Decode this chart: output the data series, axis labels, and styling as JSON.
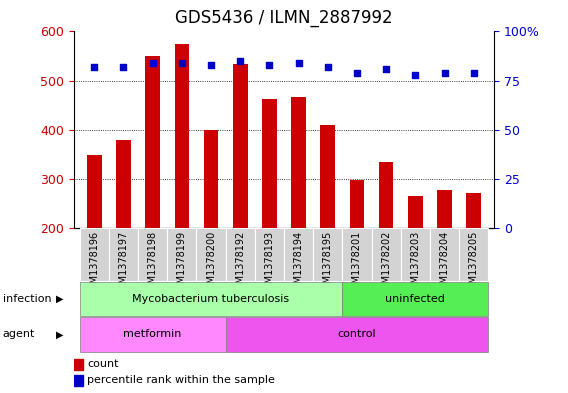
{
  "title": "GDS5436 / ILMN_2887992",
  "samples": [
    "GSM1378196",
    "GSM1378197",
    "GSM1378198",
    "GSM1378199",
    "GSM1378200",
    "GSM1378192",
    "GSM1378193",
    "GSM1378194",
    "GSM1378195",
    "GSM1378201",
    "GSM1378202",
    "GSM1378203",
    "GSM1378204",
    "GSM1378205"
  ],
  "counts": [
    348,
    378,
    550,
    575,
    400,
    533,
    463,
    467,
    410,
    298,
    335,
    265,
    277,
    272
  ],
  "percentiles": [
    82,
    82,
    84,
    84,
    83,
    85,
    83,
    84,
    82,
    79,
    81,
    78,
    79,
    79
  ],
  "ylim_left": [
    200,
    600
  ],
  "ylim_right": [
    0,
    100
  ],
  "yticks_left": [
    200,
    300,
    400,
    500,
    600
  ],
  "yticks_right": [
    0,
    25,
    50,
    75,
    100
  ],
  "bar_color": "#CC0000",
  "dot_color": "#0000CC",
  "bar_width": 0.5,
  "infection_groups": [
    {
      "label": "Mycobacterium tuberculosis",
      "start": 0,
      "end": 9,
      "color": "#AAFFAA"
    },
    {
      "label": "uninfected",
      "start": 9,
      "end": 14,
      "color": "#55EE55"
    }
  ],
  "agent_groups": [
    {
      "label": "metformin",
      "start": 0,
      "end": 5,
      "color": "#FF88FF"
    },
    {
      "label": "control",
      "start": 5,
      "end": 14,
      "color": "#EE55EE"
    }
  ],
  "infection_label": "infection",
  "agent_label": "agent",
  "legend_count_label": "count",
  "legend_pct_label": "percentile rank within the sample",
  "tick_label_color_left": "#CC0000",
  "tick_label_color_right": "#0000CC",
  "title_fontsize": 12,
  "axis_fontsize": 9,
  "sample_fontsize": 7
}
